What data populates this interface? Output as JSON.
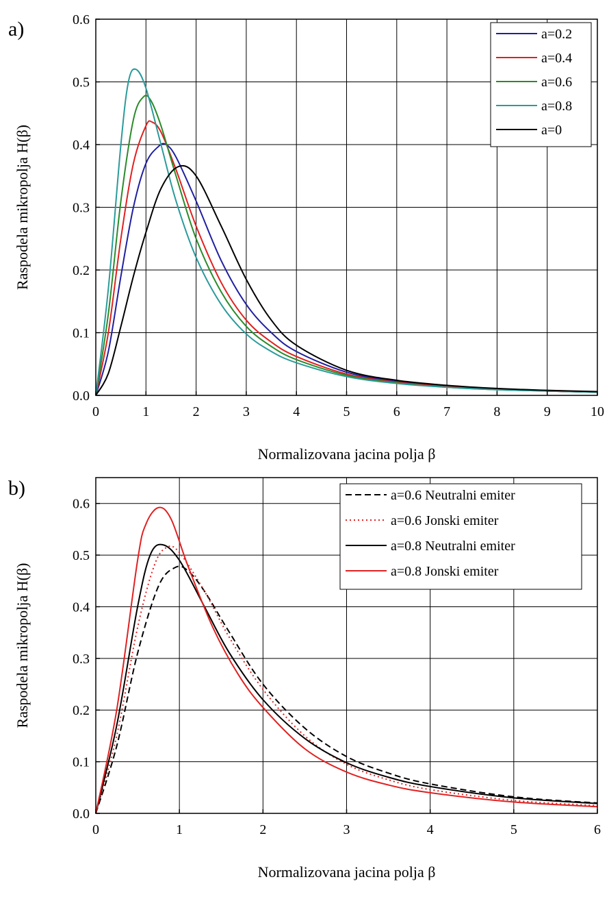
{
  "chart_data": [
    {
      "panel": "a)",
      "type": "line",
      "title": "",
      "xlabel": "Normalizovana jacina polja β",
      "ylabel": "Raspodela mikropolja H(β)",
      "xlim": [
        0,
        10
      ],
      "ylim": [
        0,
        0.6
      ],
      "xticks": [
        "0",
        "1",
        "2",
        "3",
        "4",
        "5",
        "6",
        "7",
        "8",
        "9",
        "10"
      ],
      "yticks": [
        "0.0",
        "0.1",
        "0.2",
        "0.3",
        "0.4",
        "0.5",
        "0.6"
      ],
      "grid": true,
      "legend_position": "top-right",
      "series": [
        {
          "name": "a=0.2",
          "color": "#1f1fa0",
          "dash": "solid",
          "x": [
            0,
            0.25,
            0.5,
            0.75,
            1.0,
            1.25,
            1.4,
            1.6,
            2.0,
            2.5,
            3.0,
            3.5,
            4.0,
            5.0,
            6.0,
            7.0,
            8.0,
            9.0,
            10.0
          ],
          "y": [
            0,
            0.07,
            0.19,
            0.3,
            0.37,
            0.397,
            0.4,
            0.38,
            0.31,
            0.215,
            0.145,
            0.1,
            0.07,
            0.037,
            0.022,
            0.014,
            0.01,
            0.007,
            0.005
          ]
        },
        {
          "name": "a=0.4",
          "color": "#e02020",
          "dash": "solid",
          "x": [
            0,
            0.25,
            0.5,
            0.75,
            1.0,
            1.12,
            1.3,
            1.6,
            2.0,
            2.5,
            3.0,
            3.5,
            4.0,
            5.0,
            6.0,
            7.0,
            8.0,
            9.0,
            10.0
          ],
          "y": [
            0,
            0.1,
            0.25,
            0.37,
            0.43,
            0.436,
            0.42,
            0.36,
            0.27,
            0.18,
            0.12,
            0.085,
            0.062,
            0.034,
            0.021,
            0.014,
            0.01,
            0.007,
            0.005
          ]
        },
        {
          "name": "a=0.6",
          "color": "#2a8a2a",
          "dash": "solid",
          "x": [
            0,
            0.25,
            0.5,
            0.75,
            0.95,
            1.1,
            1.3,
            1.6,
            2.0,
            2.5,
            3.0,
            3.5,
            4.0,
            5.0,
            6.0,
            7.0,
            8.0,
            9.0,
            10.0
          ],
          "y": [
            0,
            0.13,
            0.31,
            0.44,
            0.476,
            0.47,
            0.43,
            0.35,
            0.25,
            0.165,
            0.11,
            0.078,
            0.057,
            0.032,
            0.02,
            0.013,
            0.009,
            0.007,
            0.005
          ]
        },
        {
          "name": "a=0.8",
          "color": "#2a9a9a",
          "dash": "solid",
          "x": [
            0,
            0.25,
            0.5,
            0.65,
            0.8,
            1.0,
            1.3,
            1.6,
            2.0,
            2.5,
            3.0,
            3.5,
            4.0,
            5.0,
            6.0,
            7.0,
            8.0,
            9.0,
            10.0
          ],
          "y": [
            0,
            0.17,
            0.4,
            0.5,
            0.52,
            0.49,
            0.4,
            0.31,
            0.22,
            0.145,
            0.098,
            0.07,
            0.052,
            0.03,
            0.019,
            0.013,
            0.009,
            0.007,
            0.005
          ]
        },
        {
          "name": "a=0",
          "color": "#000000",
          "dash": "solid",
          "x": [
            0,
            0.25,
            0.5,
            0.75,
            1.0,
            1.3,
            1.65,
            2.0,
            2.5,
            3.0,
            3.5,
            4.0,
            5.0,
            6.0,
            7.0,
            8.0,
            9.0,
            10.0
          ],
          "y": [
            0,
            0.035,
            0.11,
            0.19,
            0.26,
            0.33,
            0.365,
            0.35,
            0.27,
            0.185,
            0.12,
            0.08,
            0.04,
            0.024,
            0.016,
            0.011,
            0.008,
            0.006
          ]
        }
      ]
    },
    {
      "panel": "b)",
      "type": "line",
      "title": "",
      "xlabel": "Normalizovana jacina polja β",
      "ylabel": "Raspodela mikropolja H(β)",
      "xlim": [
        0,
        6
      ],
      "ylim": [
        0,
        0.65
      ],
      "xticks": [
        "0",
        "1",
        "2",
        "3",
        "4",
        "5",
        "6"
      ],
      "yticks": [
        "0.0",
        "0.1",
        "0.2",
        "0.3",
        "0.4",
        "0.5",
        "0.6"
      ],
      "grid": true,
      "legend_position": "top-right",
      "series": [
        {
          "name": "a=0.6 Neutralni emiter",
          "color": "#000000",
          "dash": "dashed",
          "x": [
            0,
            0.25,
            0.5,
            0.75,
            0.95,
            1.1,
            1.3,
            1.6,
            2.0,
            2.5,
            3.0,
            3.5,
            4.0,
            5.0,
            6.0
          ],
          "y": [
            0,
            0.13,
            0.31,
            0.44,
            0.476,
            0.47,
            0.43,
            0.35,
            0.25,
            0.165,
            0.11,
            0.078,
            0.057,
            0.032,
            0.02
          ]
        },
        {
          "name": "a=0.6 Jonski emiter",
          "color": "#e02020",
          "dash": "dotted",
          "x": [
            0,
            0.25,
            0.5,
            0.7,
            0.85,
            1.0,
            1.3,
            1.6,
            2.0,
            2.5,
            3.0,
            3.5,
            4.0,
            5.0,
            6.0
          ],
          "y": [
            0,
            0.15,
            0.36,
            0.48,
            0.515,
            0.505,
            0.43,
            0.34,
            0.24,
            0.15,
            0.095,
            0.065,
            0.046,
            0.025,
            0.015
          ]
        },
        {
          "name": "a=0.8 Neutralni emiter",
          "color": "#000000",
          "dash": "solid",
          "x": [
            0,
            0.25,
            0.5,
            0.65,
            0.8,
            1.0,
            1.3,
            1.6,
            2.0,
            2.5,
            3.0,
            3.5,
            4.0,
            5.0,
            6.0
          ],
          "y": [
            0,
            0.17,
            0.4,
            0.5,
            0.52,
            0.49,
            0.4,
            0.31,
            0.22,
            0.145,
            0.098,
            0.07,
            0.052,
            0.03,
            0.019
          ]
        },
        {
          "name": "a=0.8 Jonski emiter",
          "color": "#e02020",
          "dash": "solid",
          "x": [
            0,
            0.25,
            0.5,
            0.6,
            0.75,
            0.9,
            1.1,
            1.4,
            1.7,
            2.0,
            2.5,
            3.0,
            3.5,
            4.0,
            5.0,
            6.0
          ],
          "y": [
            0,
            0.2,
            0.49,
            0.56,
            0.592,
            0.57,
            0.48,
            0.36,
            0.27,
            0.205,
            0.125,
            0.08,
            0.055,
            0.04,
            0.022,
            0.013
          ]
        }
      ]
    }
  ]
}
